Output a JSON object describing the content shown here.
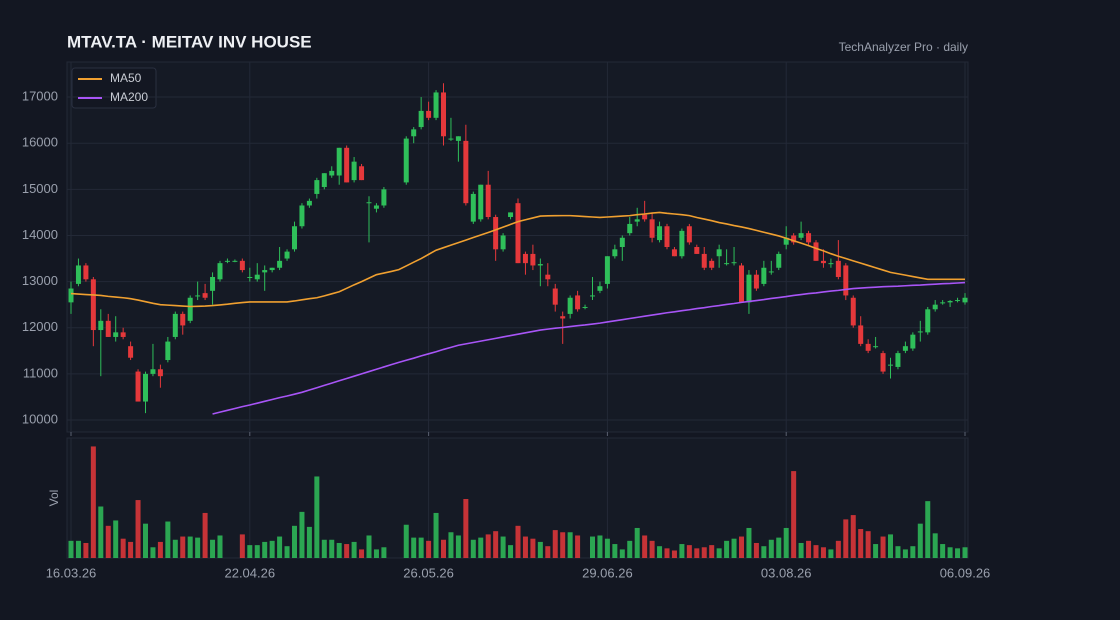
{
  "chart_data": {
    "type": "candlestick",
    "title": "MTAV.TA  ·  MEITAV INV HOUSE",
    "subtitle": "TechAnalyzer Pro · daily",
    "volume_label": "Vol",
    "up_color": "#2fbf5a",
    "down_color": "#e5383b",
    "grid": true,
    "legend": "top-left",
    "ylim": [
      9740,
      17760
    ],
    "yticks": [
      10000,
      11000,
      12000,
      13000,
      14000,
      15000,
      16000,
      17000
    ],
    "volume_ylim": [
      0,
      110
    ],
    "categories": [
      "16.03.26",
      null,
      null,
      null,
      null,
      null,
      null,
      null,
      null,
      null,
      null,
      null,
      null,
      null,
      null,
      null,
      null,
      null,
      null,
      null,
      null,
      null,
      null,
      null,
      "22.04.26",
      null,
      null,
      null,
      null,
      null,
      null,
      null,
      null,
      null,
      null,
      null,
      null,
      null,
      null,
      null,
      null,
      null,
      null,
      null,
      null,
      null,
      null,
      null,
      "26.05.26",
      null,
      null,
      null,
      null,
      null,
      null,
      null,
      null,
      null,
      null,
      null,
      null,
      null,
      null,
      null,
      null,
      null,
      null,
      null,
      null,
      null,
      null,
      null,
      "29.06.26",
      null,
      null,
      null,
      null,
      null,
      null,
      null,
      null,
      null,
      null,
      null,
      null,
      null,
      null,
      null,
      null,
      null,
      null,
      null,
      null,
      null,
      null,
      null,
      "03.08.26",
      null,
      null,
      null,
      null,
      null,
      null,
      null,
      null,
      null,
      null,
      null,
      null,
      null,
      null,
      null,
      null,
      null,
      null,
      null,
      null,
      null,
      null,
      null,
      "06.09.26"
    ],
    "open": [
      12550,
      12950,
      13350,
      13050,
      11950,
      12150,
      11800,
      11900,
      11600,
      11050,
      10400,
      11000,
      11100,
      11300,
      11800,
      12300,
      12150,
      12700,
      12750,
      12800,
      13050,
      13450,
      13450,
      13450,
      13100,
      13050,
      13200,
      13250,
      13300,
      13500,
      13700,
      14200,
      14650,
      14900,
      15050,
      15300,
      15300,
      15900,
      15200,
      15500,
      14700,
      14580,
      14650,
      null,
      null,
      15150,
      16150,
      16350,
      16700,
      16550,
      17100,
      16100,
      16050,
      16050,
      14300,
      14350,
      15100,
      14400,
      13700,
      14400,
      14700,
      13600,
      13600,
      13350,
      13150,
      12850,
      12250,
      12300,
      12700,
      12450,
      12700,
      12800,
      12950,
      13550,
      13750,
      14050,
      14300,
      14450,
      14350,
      13900,
      14200,
      13700,
      13550,
      14200,
      13750,
      13600,
      13450,
      13550,
      13400,
      13400,
      13350,
      12550,
      13150,
      12950,
      13200,
      13300,
      13800,
      14000,
      13950,
      14050,
      13850,
      13450,
      13400,
      13450,
      13350,
      12650,
      12050,
      11650,
      11600,
      11450,
      11200,
      11150,
      11500,
      11550,
      11900,
      11900,
      12400,
      12550,
      12550,
      12600,
      12550
    ],
    "high": [
      13000,
      13500,
      13400,
      13100,
      12400,
      12300,
      12250,
      12000,
      11700,
      11100,
      11050,
      11650,
      11200,
      11800,
      12350,
      12350,
      12700,
      13000,
      12950,
      13200,
      13450,
      13500,
      13480,
      13500,
      13300,
      13400,
      13350,
      13300,
      13750,
      13700,
      14300,
      14700,
      14800,
      15250,
      15350,
      15500,
      15900,
      15950,
      15700,
      15550,
      14850,
      14700,
      15050,
      null,
      null,
      16150,
      16350,
      17000,
      16900,
      17150,
      17300,
      16550,
      16150,
      16400,
      14950,
      15100,
      15400,
      14450,
      14050,
      14500,
      14800,
      13650,
      13800,
      13500,
      13400,
      12950,
      12350,
      12700,
      12800,
      12500,
      13100,
      13000,
      13550,
      13800,
      14000,
      14400,
      14600,
      14750,
      14500,
      14300,
      14250,
      13750,
      14150,
      14250,
      13800,
      13750,
      13500,
      13800,
      13700,
      13750,
      13400,
      13250,
      13250,
      13450,
      13450,
      13650,
      14200,
      14050,
      14300,
      14100,
      13900,
      13700,
      13500,
      13900,
      13400,
      12700,
      12250,
      11750,
      11800,
      11500,
      11350,
      11500,
      11700,
      11900,
      12150,
      12450,
      12600,
      12600,
      12600,
      12650,
      12750
    ],
    "low": [
      12300,
      12900,
      13000,
      11600,
      10950,
      11800,
      11700,
      11750,
      11300,
      10400,
      10150,
      10950,
      10700,
      11250,
      11750,
      11850,
      12100,
      12600,
      12600,
      12500,
      13000,
      13400,
      13420,
      13200,
      13000,
      13000,
      12800,
      13200,
      13250,
      13450,
      13650,
      14150,
      14600,
      14800,
      15000,
      15250,
      15100,
      15150,
      15150,
      15200,
      13850,
      14500,
      14600,
      null,
      null,
      15100,
      16000,
      16300,
      16500,
      16500,
      15950,
      16050,
      15600,
      14650,
      14250,
      14300,
      14350,
      13450,
      13650,
      14350,
      13400,
      13150,
      13250,
      12900,
      12900,
      12350,
      11650,
      12200,
      12350,
      12400,
      12600,
      12750,
      12850,
      13500,
      13450,
      14000,
      14200,
      14300,
      13850,
      13850,
      13700,
      13550,
      13500,
      13800,
      13600,
      13250,
      13250,
      13300,
      13350,
      13350,
      12550,
      12300,
      12800,
      12900,
      13150,
      13250,
      13700,
      13800,
      13900,
      13800,
      13450,
      13300,
      13300,
      13050,
      12600,
      12000,
      11600,
      11450,
      11550,
      11000,
      10900,
      11100,
      11450,
      11500,
      11700,
      11850,
      12350,
      12500,
      12450,
      12550,
      12500
    ],
    "close": [
      12850,
      13350,
      13050,
      11950,
      12150,
      11800,
      11900,
      11800,
      11350,
      10400,
      11000,
      11100,
      10950,
      11700,
      12300,
      12050,
      12650,
      12700,
      12650,
      13100,
      13400,
      13450,
      13450,
      13250,
      13100,
      13150,
      13250,
      13300,
      13450,
      13650,
      14200,
      14650,
      14750,
      15200,
      15350,
      15400,
      15900,
      15150,
      15600,
      15200,
      14720,
      14650,
      15000,
      null,
      null,
      16100,
      16300,
      16700,
      16550,
      17100,
      16150,
      16100,
      16150,
      14700,
      14900,
      15100,
      14400,
      13700,
      14000,
      14500,
      13400,
      13400,
      13350,
      13380,
      13050,
      12500,
      12200,
      12650,
      12400,
      12450,
      12700,
      12900,
      13550,
      13700,
      13950,
      14250,
      14350,
      14350,
      13950,
      14200,
      13750,
      13550,
      14100,
      13850,
      13600,
      13300,
      13300,
      13700,
      13400,
      13420,
      12550,
      13150,
      12850,
      13300,
      13220,
      13600,
      13950,
      13850,
      14050,
      13850,
      13450,
      13400,
      13400,
      13100,
      12700,
      12050,
      11650,
      11500,
      11600,
      11050,
      11200,
      11450,
      11600,
      11850,
      11920,
      12400,
      12500,
      12550,
      12580,
      12600,
      12650
    ],
    "volume": [
      16,
      16,
      14,
      104,
      48,
      30,
      35,
      18,
      15,
      54,
      32,
      10,
      15,
      34,
      17,
      20,
      20,
      19,
      42,
      17,
      21,
      0,
      0,
      22,
      12,
      12,
      15,
      16,
      20,
      11,
      30,
      43,
      29,
      76,
      17,
      17,
      14,
      13,
      15,
      8,
      21,
      8,
      10,
      null,
      null,
      31,
      19,
      19,
      16,
      42,
      17,
      24,
      21,
      55,
      17,
      19,
      22,
      25,
      20,
      12,
      30,
      20,
      18,
      15,
      11,
      26,
      24,
      24,
      21,
      0,
      20,
      21,
      18,
      13,
      8,
      16,
      28,
      21,
      16,
      11,
      9,
      7,
      13,
      12,
      9,
      10,
      12,
      9,
      16,
      18,
      20,
      28,
      14,
      11,
      17,
      19,
      28,
      81,
      14,
      16,
      12,
      10,
      8,
      16,
      36,
      40,
      27,
      25,
      13,
      20,
      22,
      11,
      8,
      11,
      32,
      53,
      23,
      13,
      10,
      9,
      10
    ],
    "series": [
      {
        "name": "MA50",
        "color": "#f0a030",
        "values": [
          12740,
          12730,
          12720,
          12710,
          12700,
          12680,
          12665,
          12650,
          12630,
          12600,
          12565,
          12530,
          12500,
          12490,
          12480,
          12470,
          12460,
          12465,
          12470,
          12480,
          12495,
          12510,
          12530,
          12545,
          12560,
          12560,
          12560,
          12560,
          12560,
          12560,
          12580,
          12605,
          12630,
          12650,
          12690,
          12735,
          12780,
          12855,
          12930,
          13000,
          13075,
          13150,
          13185,
          13220,
          13260,
          13340,
          13420,
          13500,
          13590,
          13680,
          13735,
          13790,
          13845,
          13900,
          13955,
          14010,
          14065,
          14120,
          14180,
          14240,
          14300,
          14340,
          14380,
          14420,
          14425,
          14428,
          14430,
          14430,
          14420,
          14410,
          14400,
          14390,
          14400,
          14410,
          14420,
          14430,
          14450,
          14465,
          14485,
          14500,
          14480,
          14465,
          14450,
          14430,
          14390,
          14355,
          14320,
          14280,
          14250,
          14215,
          14185,
          14150,
          14110,
          14070,
          14030,
          13990,
          13940,
          13885,
          13835,
          13780,
          13720,
          13665,
          13605,
          13550,
          13500,
          13450,
          13400,
          13350,
          13300,
          13250,
          13200,
          13170,
          13140,
          13110,
          13080,
          13050,
          13050,
          13050,
          13050,
          13050,
          13050
        ]
      },
      {
        "name": "MA200",
        "color": "#a855f7",
        "values": [
          null,
          null,
          null,
          null,
          null,
          null,
          null,
          null,
          null,
          null,
          null,
          null,
          null,
          null,
          null,
          null,
          null,
          null,
          null,
          10130,
          10170,
          10210,
          10250,
          10290,
          10325,
          10365,
          10405,
          10445,
          10485,
          10520,
          10560,
          10600,
          10650,
          10700,
          10750,
          10800,
          10850,
          10900,
          10950,
          11000,
          11050,
          11100,
          11150,
          11200,
          11250,
          11295,
          11340,
          11390,
          11435,
          11480,
          11530,
          11575,
          11620,
          11650,
          11680,
          11710,
          11740,
          11770,
          11800,
          11830,
          11860,
          11890,
          11920,
          11950,
          11970,
          11990,
          12005,
          12025,
          12045,
          12060,
          12080,
          12100,
          12125,
          12150,
          12175,
          12200,
          12225,
          12250,
          12275,
          12300,
          12325,
          12345,
          12370,
          12390,
          12415,
          12435,
          12460,
          12480,
          12505,
          12525,
          12550,
          12570,
          12590,
          12610,
          12635,
          12655,
          12675,
          12700,
          12720,
          12740,
          12755,
          12775,
          12795,
          12810,
          12830,
          12850,
          12860,
          12870,
          12880,
          12890,
          12895,
          12900,
          12910,
          12920,
          12925,
          12935,
          12945,
          12955,
          12960,
          12970,
          12980
        ]
      }
    ]
  }
}
